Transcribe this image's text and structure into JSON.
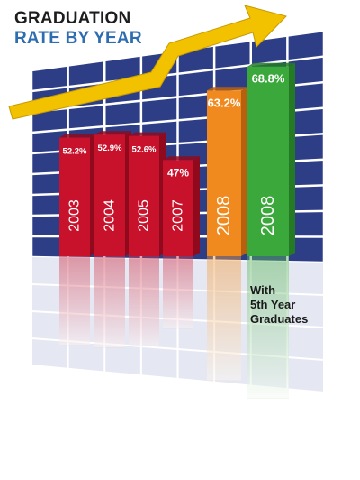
{
  "title": {
    "line1": "GRADUATION",
    "line2": "RATE BY YEAR"
  },
  "colors": {
    "grid_back": "#2d3e86",
    "grid_line": "#ffffff",
    "bar_red": "#c8112b",
    "bar_orange": "#f08a1e",
    "bar_green": "#3aa83a",
    "arrow": "#f2c200",
    "title_dark": "#1d1d1d",
    "title_blue": "#2e6db0"
  },
  "chart_data": {
    "type": "bar",
    "title": "GRADUATION RATE BY YEAR",
    "xlabel": "",
    "ylabel": "",
    "categories": [
      "2003",
      "2004",
      "2005",
      "2007",
      "2008",
      "2008"
    ],
    "values": [
      52.2,
      52.9,
      52.6,
      47,
      63.2,
      68.8
    ],
    "value_labels": [
      "52.2%",
      "52.9%",
      "52.6%",
      "47%",
      "63.2%",
      "68.8%"
    ],
    "bar_colors": [
      "red",
      "red",
      "red",
      "red",
      "orange",
      "green"
    ],
    "annotation": [
      "With",
      "5th Year",
      "Graduates"
    ],
    "trend_arrow": "up",
    "grid": true,
    "reflection": true
  }
}
